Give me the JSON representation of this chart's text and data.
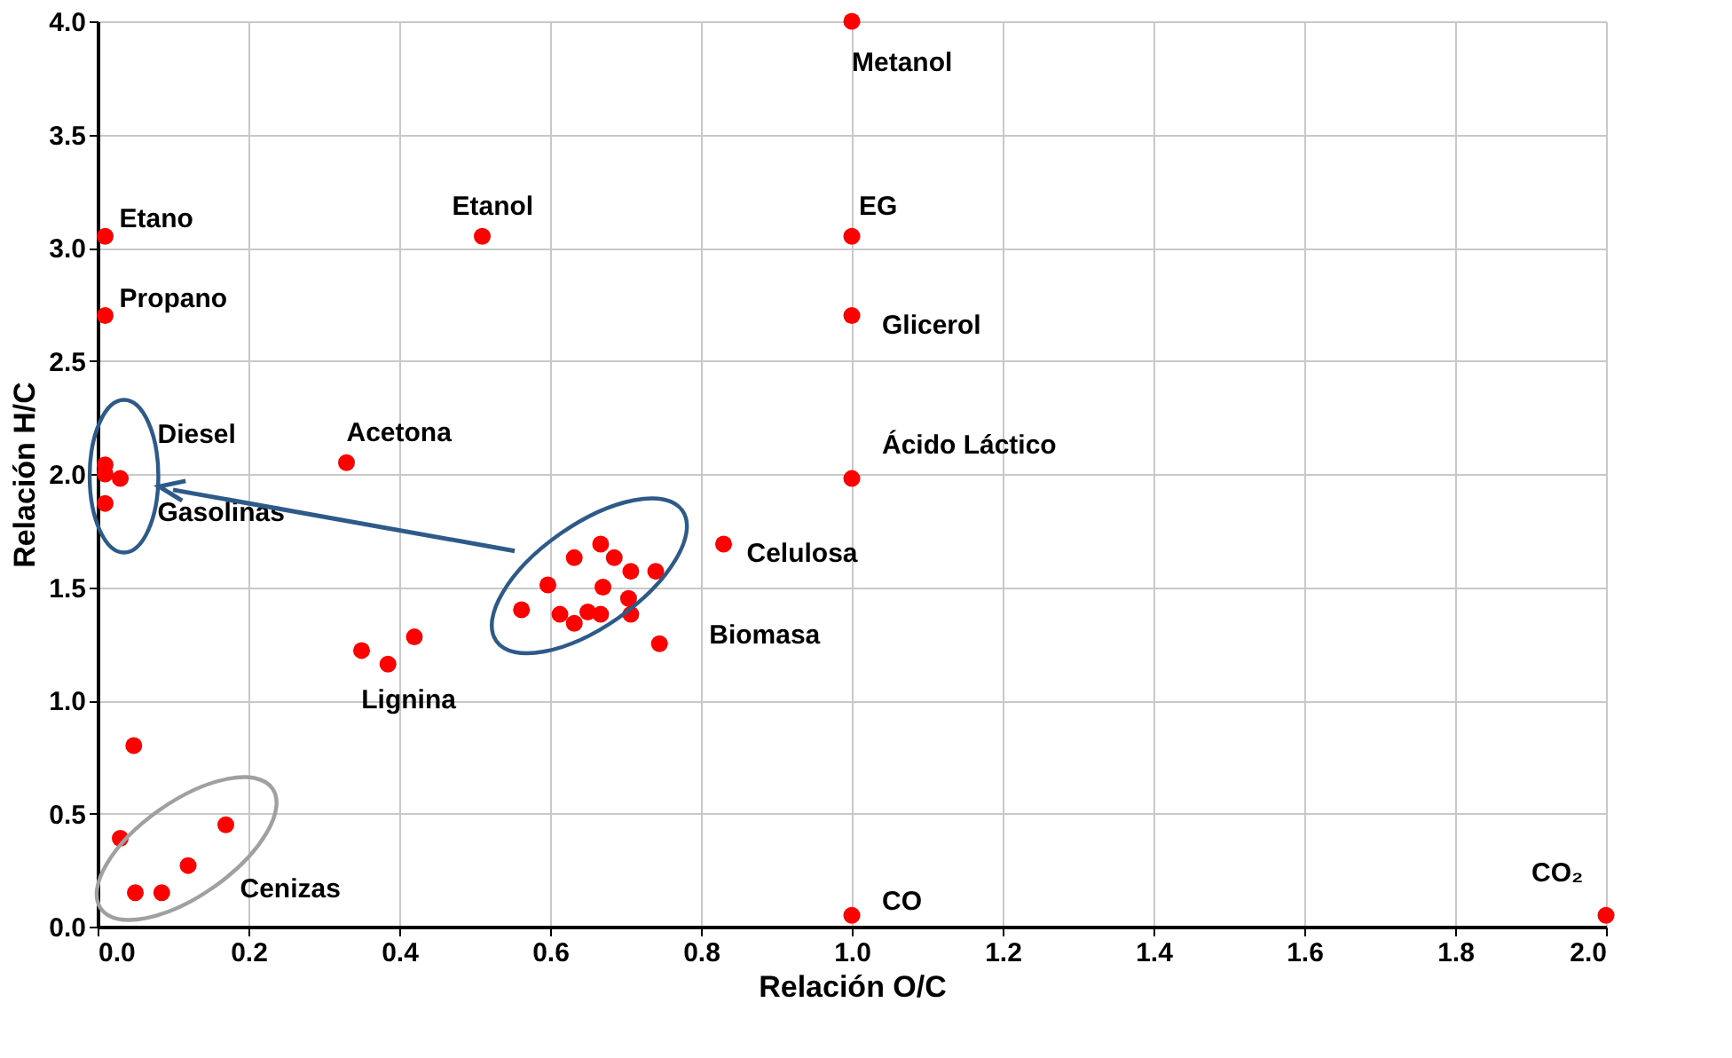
{
  "chart_data": {
    "type": "scatter",
    "xlabel": "Relación O/C",
    "ylabel": "Relación H/C",
    "x": [
      1.0,
      1.0,
      1.0,
      1.0,
      1.0,
      2.0,
      0.01,
      0.51,
      0.01,
      0.33,
      0.01,
      0.03,
      0.01,
      0.01,
      0.35,
      0.385,
      0.42,
      0.048,
      0.03,
      0.05,
      0.085,
      0.12,
      0.17,
      0.83,
      0.745,
      0.667,
      0.632,
      0.685,
      0.707,
      0.74,
      0.597,
      0.67,
      0.704,
      0.562,
      0.613,
      0.632,
      0.65,
      0.667,
      0.707
    ],
    "values": [
      4.0,
      3.05,
      2.7,
      1.98,
      0.05,
      0.05,
      3.05,
      3.05,
      2.7,
      2.05,
      2.04,
      1.98,
      2.0,
      1.87,
      1.22,
      1.16,
      1.28,
      0.8,
      0.39,
      0.15,
      0.15,
      0.27,
      0.45,
      1.69,
      1.25,
      1.69,
      1.63,
      1.63,
      1.57,
      1.57,
      1.51,
      1.5,
      1.45,
      1.4,
      1.38,
      1.34,
      1.39,
      1.38,
      1.38
    ],
    "color": "#ff0000",
    "marker": "circle",
    "grid": true,
    "xlim": [
      0,
      2.0
    ],
    "ylim": [
      0,
      4.0
    ],
    "xticks": [
      {
        "value": 0,
        "label": "0.0"
      },
      {
        "value": 0.2,
        "label": "0.2"
      },
      {
        "value": 0.4,
        "label": "0.4"
      },
      {
        "value": 0.6,
        "label": "0.6"
      },
      {
        "value": 0.8,
        "label": "0.8"
      },
      {
        "value": 1.0,
        "label": "1.0"
      },
      {
        "value": 1.2,
        "label": "1.2"
      },
      {
        "value": 1.4,
        "label": "1.4"
      },
      {
        "value": 1.6,
        "label": "1.6"
      },
      {
        "value": 1.8,
        "label": "1.8"
      },
      {
        "value": 2.0,
        "label": "2.0"
      }
    ],
    "yticks": [
      {
        "value": 0,
        "label": "0.0"
      },
      {
        "value": 0.5,
        "label": "0.5"
      },
      {
        "value": 1.0,
        "label": "1.0"
      },
      {
        "value": 1.5,
        "label": "1.5"
      },
      {
        "value": 2.0,
        "label": "2.0"
      },
      {
        "value": 2.5,
        "label": "2.5"
      },
      {
        "value": 3.0,
        "label": "3.0"
      },
      {
        "value": 3.5,
        "label": "3.5"
      },
      {
        "value": 4.0,
        "label": "4.0"
      }
    ],
    "annotations": [
      {
        "text": "Metanol",
        "x": 1.0,
        "y": 4.0
      },
      {
        "text": "Etano",
        "x": 0.01,
        "y": 3.05
      },
      {
        "text": "Etanol",
        "x": 0.51,
        "y": 3.05
      },
      {
        "text": "EG",
        "x": 1.0,
        "y": 3.05
      },
      {
        "text": "Propano",
        "x": 0.01,
        "y": 2.7
      },
      {
        "text": "Glicerol",
        "x": 1.0,
        "y": 2.7
      },
      {
        "text": "Acetona",
        "x": 0.33,
        "y": 2.05
      },
      {
        "text": "Diesel",
        "x": 0.03,
        "y": 1.98
      },
      {
        "text": "Gasolinas",
        "x": 0.03,
        "y": 1.98
      },
      {
        "text": "Ácido Láctico",
        "x": 1.0,
        "y": 1.98
      },
      {
        "text": "Celulosa",
        "x": 0.83,
        "y": 1.69
      },
      {
        "text": "Biomasa",
        "x": 0.745,
        "y": 1.25
      },
      {
        "text": "Lignina",
        "x": 0.385,
        "y": 1.16
      },
      {
        "text": "Cenizas",
        "x": 0.17,
        "y": 0.45
      },
      {
        "text": "CO",
        "x": 1.0,
        "y": 0.05
      },
      {
        "text": "CO₂",
        "x": 2.0,
        "y": 0.05
      }
    ]
  }
}
